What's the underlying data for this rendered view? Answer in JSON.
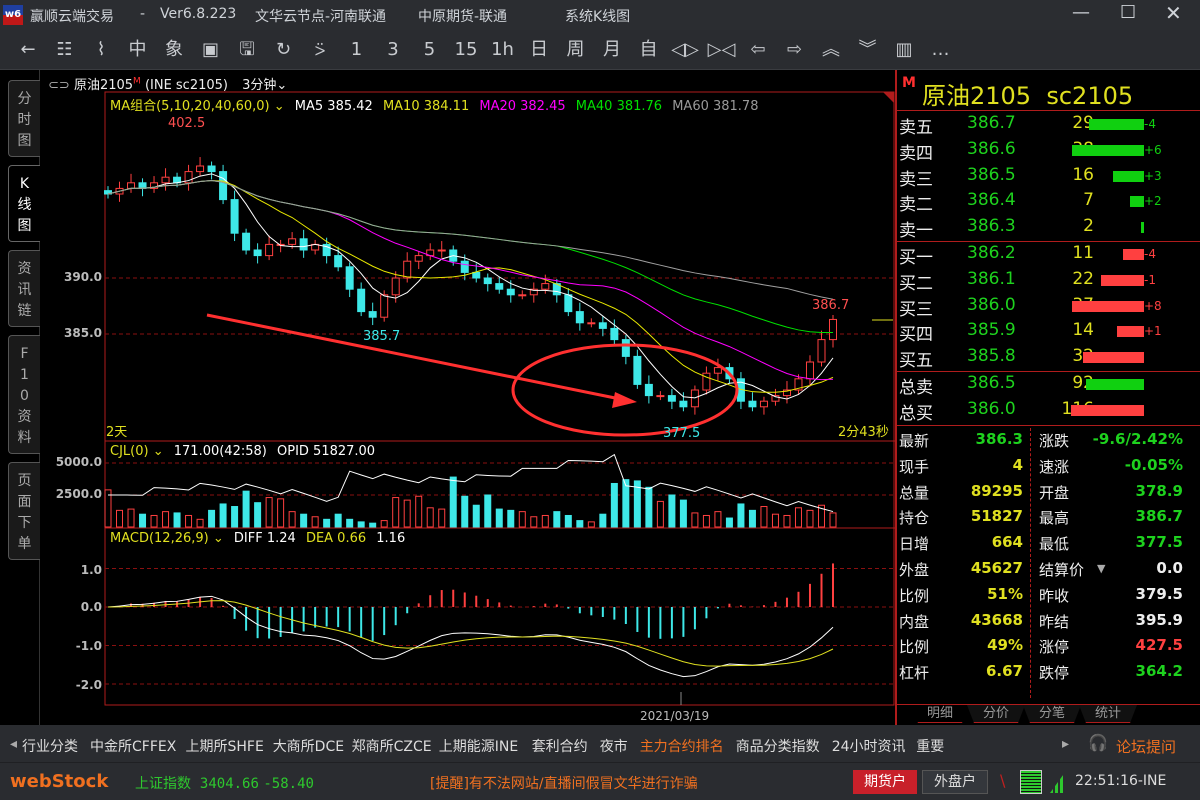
{
  "window": {
    "app": "赢顺云端交易",
    "sep": "-",
    "version": "Ver6.8.223",
    "node": "文华云节点-河南联通",
    "broker": "中原期货-联通",
    "view": "系统K线图"
  },
  "toolbar": [
    "←",
    "☷",
    "⌇",
    "中",
    "象",
    "▣",
    "🖫",
    "↻",
    "⍩",
    "1",
    "3",
    "5",
    "15",
    "1h",
    "日",
    "周",
    "月",
    "自",
    "◁▷",
    "▷◁",
    "⇦",
    "⇨",
    "︽",
    "︾",
    "▥",
    "…"
  ],
  "left_tabs": [
    {
      "label": "分时图",
      "active": false
    },
    {
      "label": "K线图",
      "active": true
    },
    {
      "label": "资讯链",
      "active": false
    },
    {
      "label": "F10资料",
      "active": false
    },
    {
      "label": "页面下单",
      "active": false
    }
  ],
  "chart_header": {
    "name": "原油2105",
    "flag": "M",
    "code": "(INE sc2105)",
    "period": "3分钟"
  },
  "ma_line": {
    "label": "MA组合(5,10,20,40,60,0)",
    "ma5": "MA5 385.42",
    "ma10": "MA10 384.11",
    "ma20": "MA20 382.45",
    "ma40": "MA40 381.76",
    "ma60": "MA60 381.78"
  },
  "colors": {
    "up": "#ff4040",
    "down": "#3ee8e8",
    "ma5": "#ffffff",
    "ma10": "#e8e800",
    "ma20": "#ff00ff",
    "ma40": "#00e000",
    "ma60": "#a0a0a0",
    "frame": "#b01c1c"
  },
  "annotations": {
    "high": "402.5",
    "low1": "385.7",
    "low2": "377.5",
    "last": "386.7",
    "days": "2天",
    "countdown": "2分43秒",
    "date": "2021/03/19"
  },
  "vol_header": {
    "label": "CJL(0)",
    "value": "171.00(42:58)",
    "opid": "OPID 51827.00"
  },
  "macd_header": {
    "label": "MACD(12,26,9)",
    "diff": "DIFF 1.24",
    "dea": "DEA 0.66",
    "macd": "1.16"
  },
  "chart_data": {
    "type": "candlestick",
    "price_ticks": [
      "390.0",
      "385.0"
    ],
    "vol_ticks": [
      "5000.0",
      "2500.0"
    ],
    "macd_ticks": [
      "1.0",
      "0.0",
      "-1.0",
      "-2.0"
    ],
    "closes": [
      397.5,
      398,
      398.5,
      398,
      398.5,
      399,
      398.5,
      399.5,
      400,
      399.5,
      397,
      394,
      392.5,
      392,
      393,
      393,
      393.5,
      392.5,
      393,
      392,
      391,
      389,
      387,
      386.5,
      388.5,
      390,
      391.5,
      392,
      392.5,
      392.5,
      391.5,
      390.5,
      390,
      389.5,
      389,
      388.5,
      388.5,
      389,
      389.5,
      388.5,
      387,
      386,
      386,
      385.5,
      384.5,
      383,
      380.5,
      379.5,
      379.5,
      379,
      378.5,
      380,
      381.5,
      382,
      381,
      379,
      378.5,
      379,
      379.5,
      380,
      381,
      382.5,
      384.5,
      386.3
    ],
    "volumes": [
      2900,
      1300,
      1400,
      1000,
      900,
      1200,
      1100,
      900,
      600,
      1300,
      1800,
      1600,
      2800,
      1900,
      2300,
      2200,
      1200,
      1000,
      800,
      600,
      1000,
      600,
      400,
      300,
      500,
      2300,
      2100,
      2400,
      1500,
      1400,
      3900,
      2400,
      1700,
      2500,
      1400,
      1300,
      1200,
      800,
      900,
      1200,
      900,
      500,
      400,
      1000,
      3400,
      3700,
      3600,
      3100,
      2000,
      2500,
      2100,
      1100,
      900,
      1200,
      700,
      1800,
      1300,
      1600,
      1000,
      900,
      1500,
      1300,
      1700,
      1100
    ]
  },
  "quote": {
    "flag": "M",
    "name": "原油2105",
    "code": "sc2105",
    "asks": [
      {
        "label": "卖五",
        "price": "386.7",
        "vol": "29",
        "delta": "-4",
        "bar": 0.65
      },
      {
        "label": "卖四",
        "price": "386.6",
        "vol": "38",
        "delta": "+6",
        "bar": 0.85
      },
      {
        "label": "卖三",
        "price": "386.5",
        "vol": "16",
        "delta": "+3",
        "bar": 0.36
      },
      {
        "label": "卖二",
        "price": "386.4",
        "vol": "7",
        "delta": "+2",
        "bar": 0.16
      },
      {
        "label": "卖一",
        "price": "386.3",
        "vol": "2",
        "delta": "",
        "bar": 0.03
      }
    ],
    "bids": [
      {
        "label": "买一",
        "price": "386.2",
        "vol": "11",
        "delta": "-4",
        "bar": 0.25
      },
      {
        "label": "买二",
        "price": "386.1",
        "vol": "22",
        "delta": "-1",
        "bar": 0.5
      },
      {
        "label": "买三",
        "price": "386.0",
        "vol": "37",
        "delta": "+8",
        "bar": 0.85
      },
      {
        "label": "买四",
        "price": "385.9",
        "vol": "14",
        "delta": "+1",
        "bar": 0.32
      },
      {
        "label": "买五",
        "price": "385.8",
        "vol": "32",
        "delta": "",
        "bar": 0.72
      }
    ],
    "totals": [
      {
        "label": "总卖",
        "price": "386.5",
        "vol": "92",
        "bar": 0.68,
        "side": "ask"
      },
      {
        "label": "总买",
        "price": "386.0",
        "vol": "116",
        "bar": 0.86,
        "side": "bid"
      }
    ],
    "stats_left": [
      {
        "label": "最新",
        "value": "386.3",
        "c": "#1ed21e"
      },
      {
        "label": "现手",
        "value": "4",
        "c": "#e0e020"
      },
      {
        "label": "总量",
        "value": "89295",
        "c": "#e0e020"
      },
      {
        "label": "持仓",
        "value": "51827",
        "c": "#e0e020"
      },
      {
        "label": "日增",
        "value": "664",
        "c": "#e0e020"
      },
      {
        "label": "外盘",
        "value": "45627",
        "c": "#e0e020"
      },
      {
        "label": "比例",
        "value": "51%",
        "c": "#e0e020"
      },
      {
        "label": "内盘",
        "value": "43668",
        "c": "#e0e020"
      },
      {
        "label": "比例",
        "value": "49%",
        "c": "#e0e020"
      },
      {
        "label": "杠杆",
        "value": "6.67",
        "c": "#e0e020"
      }
    ],
    "stats_right": [
      {
        "label": "涨跌",
        "value": "-9.6/2.42%",
        "c": "#1ed21e"
      },
      {
        "label": "速涨",
        "value": "-0.05%",
        "c": "#1ed21e"
      },
      {
        "label": "开盘",
        "value": "378.9",
        "c": "#1ed21e"
      },
      {
        "label": "最高",
        "value": "386.7",
        "c": "#1ed21e"
      },
      {
        "label": "最低",
        "value": "377.5",
        "c": "#1ed21e"
      },
      {
        "label": "结算价",
        "value": "0.0",
        "c": "#eee"
      },
      {
        "label": "昨收",
        "value": "379.5",
        "c": "#eee"
      },
      {
        "label": "昨结",
        "value": "395.9",
        "c": "#eee"
      },
      {
        "label": "涨停",
        "value": "427.5",
        "c": "#ff4040"
      },
      {
        "label": "跌停",
        "value": "364.2",
        "c": "#1ed21e"
      }
    ],
    "tabs": [
      "明细",
      "分价",
      "分笔",
      "统计"
    ]
  },
  "bottom_tabs": {
    "items": [
      "行业分类",
      "中金所CFFEX",
      "上期所SHFE",
      "大商所DCE",
      "郑商所CZCE",
      "上期能源INE",
      "套利合约",
      "夜市",
      "主力合约排名",
      "商品分类指数",
      "24小时资讯",
      "重要"
    ],
    "active": "主力合约排名",
    "forum": "论坛提问"
  },
  "status": {
    "logo": "webStock",
    "index_name": "上证指数",
    "index_value": "3404.66",
    "index_change": "-58.40",
    "notice": "[提醒]有不法网站/直播间假冒文华进行诈骗",
    "futures_btn": "期货户",
    "foreign_btn": "外盘户",
    "time": "22:51:16-INE"
  }
}
